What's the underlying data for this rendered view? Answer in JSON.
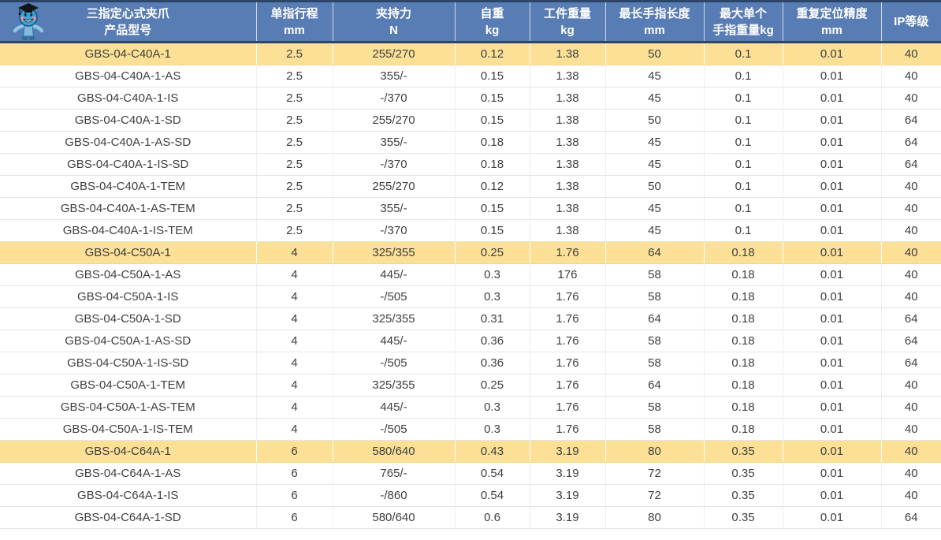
{
  "table": {
    "columns": [
      {
        "title": "三指定心式夹爪",
        "subtitle": "产品型号"
      },
      {
        "title": "单指行程",
        "subtitle": "mm"
      },
      {
        "title": "夹持力",
        "subtitle": "N"
      },
      {
        "title": "自重",
        "subtitle": "kg"
      },
      {
        "title": "工件重量",
        "subtitle": "kg"
      },
      {
        "title": "最长手指长度",
        "subtitle": "mm"
      },
      {
        "title": "最大单个",
        "subtitle": "手指重量kg"
      },
      {
        "title": "重复定位精度",
        "subtitle": "mm"
      },
      {
        "title": "IP等级",
        "subtitle": ""
      }
    ],
    "rows": [
      {
        "highlight": true,
        "values": [
          "GBS-04-C40A-1",
          "2.5",
          "255/270",
          "0.12",
          "1.38",
          "50",
          "0.1",
          "0.01",
          "40"
        ]
      },
      {
        "highlight": false,
        "values": [
          "GBS-04-C40A-1-AS",
          "2.5",
          "355/-",
          "0.15",
          "1.38",
          "45",
          "0.1",
          "0.01",
          "40"
        ]
      },
      {
        "highlight": false,
        "values": [
          "GBS-04-C40A-1-IS",
          "2.5",
          "-/370",
          "0.15",
          "1.38",
          "45",
          "0.1",
          "0.01",
          "40"
        ]
      },
      {
        "highlight": false,
        "values": [
          "GBS-04-C40A-1-SD",
          "2.5",
          "255/270",
          "0.15",
          "1.38",
          "50",
          "0.1",
          "0.01",
          "64"
        ]
      },
      {
        "highlight": false,
        "values": [
          "GBS-04-C40A-1-AS-SD",
          "2.5",
          "355/-",
          "0.18",
          "1.38",
          "45",
          "0.1",
          "0.01",
          "64"
        ]
      },
      {
        "highlight": false,
        "values": [
          "GBS-04-C40A-1-IS-SD",
          "2.5",
          "-/370",
          "0.18",
          "1.38",
          "45",
          "0.1",
          "0.01",
          "64"
        ]
      },
      {
        "highlight": false,
        "values": [
          "GBS-04-C40A-1-TEM",
          "2.5",
          "255/270",
          "0.12",
          "1.38",
          "50",
          "0.1",
          "0.01",
          "40"
        ]
      },
      {
        "highlight": false,
        "values": [
          "GBS-04-C40A-1-AS-TEM",
          "2.5",
          "355/-",
          "0.15",
          "1.38",
          "45",
          "0.1",
          "0.01",
          "40"
        ]
      },
      {
        "highlight": false,
        "values": [
          "GBS-04-C40A-1-IS-TEM",
          "2.5",
          "-/370",
          "0.15",
          "1.38",
          "45",
          "0.1",
          "0.01",
          "40"
        ]
      },
      {
        "highlight": true,
        "values": [
          "GBS-04-C50A-1",
          "4",
          "325/355",
          "0.25",
          "1.76",
          "64",
          "0.18",
          "0.01",
          "40"
        ]
      },
      {
        "highlight": false,
        "values": [
          "GBS-04-C50A-1-AS",
          "4",
          "445/-",
          "0.3",
          "176",
          "58",
          "0.18",
          "0.01",
          "40"
        ]
      },
      {
        "highlight": false,
        "values": [
          "GBS-04-C50A-1-IS",
          "4",
          "-/505",
          "0.3",
          "1.76",
          "58",
          "0.18",
          "0.01",
          "40"
        ]
      },
      {
        "highlight": false,
        "values": [
          "GBS-04-C50A-1-SD",
          "4",
          "325/355",
          "0.31",
          "1.76",
          "64",
          "0.18",
          "0.01",
          "64"
        ]
      },
      {
        "highlight": false,
        "values": [
          "GBS-04-C50A-1-AS-SD",
          "4",
          "445/-",
          "0.36",
          "1.76",
          "58",
          "0.18",
          "0.01",
          "64"
        ]
      },
      {
        "highlight": false,
        "values": [
          "GBS-04-C50A-1-IS-SD",
          "4",
          "-/505",
          "0.36",
          "1.76",
          "58",
          "0.18",
          "0.01",
          "64"
        ]
      },
      {
        "highlight": false,
        "values": [
          "GBS-04-C50A-1-TEM",
          "4",
          "325/355",
          "0.25",
          "1.76",
          "64",
          "0.18",
          "0.01",
          "40"
        ]
      },
      {
        "highlight": false,
        "values": [
          "GBS-04-C50A-1-AS-TEM",
          "4",
          "445/-",
          "0.3",
          "1.76",
          "58",
          "0.18",
          "0.01",
          "40"
        ]
      },
      {
        "highlight": false,
        "values": [
          "GBS-04-C50A-1-IS-TEM",
          "4",
          "-/505",
          "0.3",
          "1.76",
          "58",
          "0.18",
          "0.01",
          "40"
        ]
      },
      {
        "highlight": true,
        "values": [
          "GBS-04-C64A-1",
          "6",
          "580/640",
          "0.43",
          "3.19",
          "80",
          "0.35",
          "0.01",
          "40"
        ]
      },
      {
        "highlight": false,
        "values": [
          "GBS-04-C64A-1-AS",
          "6",
          "765/-",
          "0.54",
          "3.19",
          "72",
          "0.35",
          "0.01",
          "40"
        ]
      },
      {
        "highlight": false,
        "values": [
          "GBS-04-C64A-1-IS",
          "6",
          "-/860",
          "0.54",
          "3.19",
          "72",
          "0.35",
          "0.01",
          "40"
        ]
      },
      {
        "highlight": false,
        "values": [
          "GBS-04-C64A-1-SD",
          "6",
          "580/640",
          "0.6",
          "3.19",
          "80",
          "0.35",
          "0.01",
          "64"
        ]
      }
    ]
  },
  "colors": {
    "header_bg": "#587CB4",
    "header_border": "#2B4668",
    "highlight_row": "#FBE096",
    "body_text": "#3F3F3F"
  },
  "icons": {
    "mascot": "mascot-icon"
  }
}
